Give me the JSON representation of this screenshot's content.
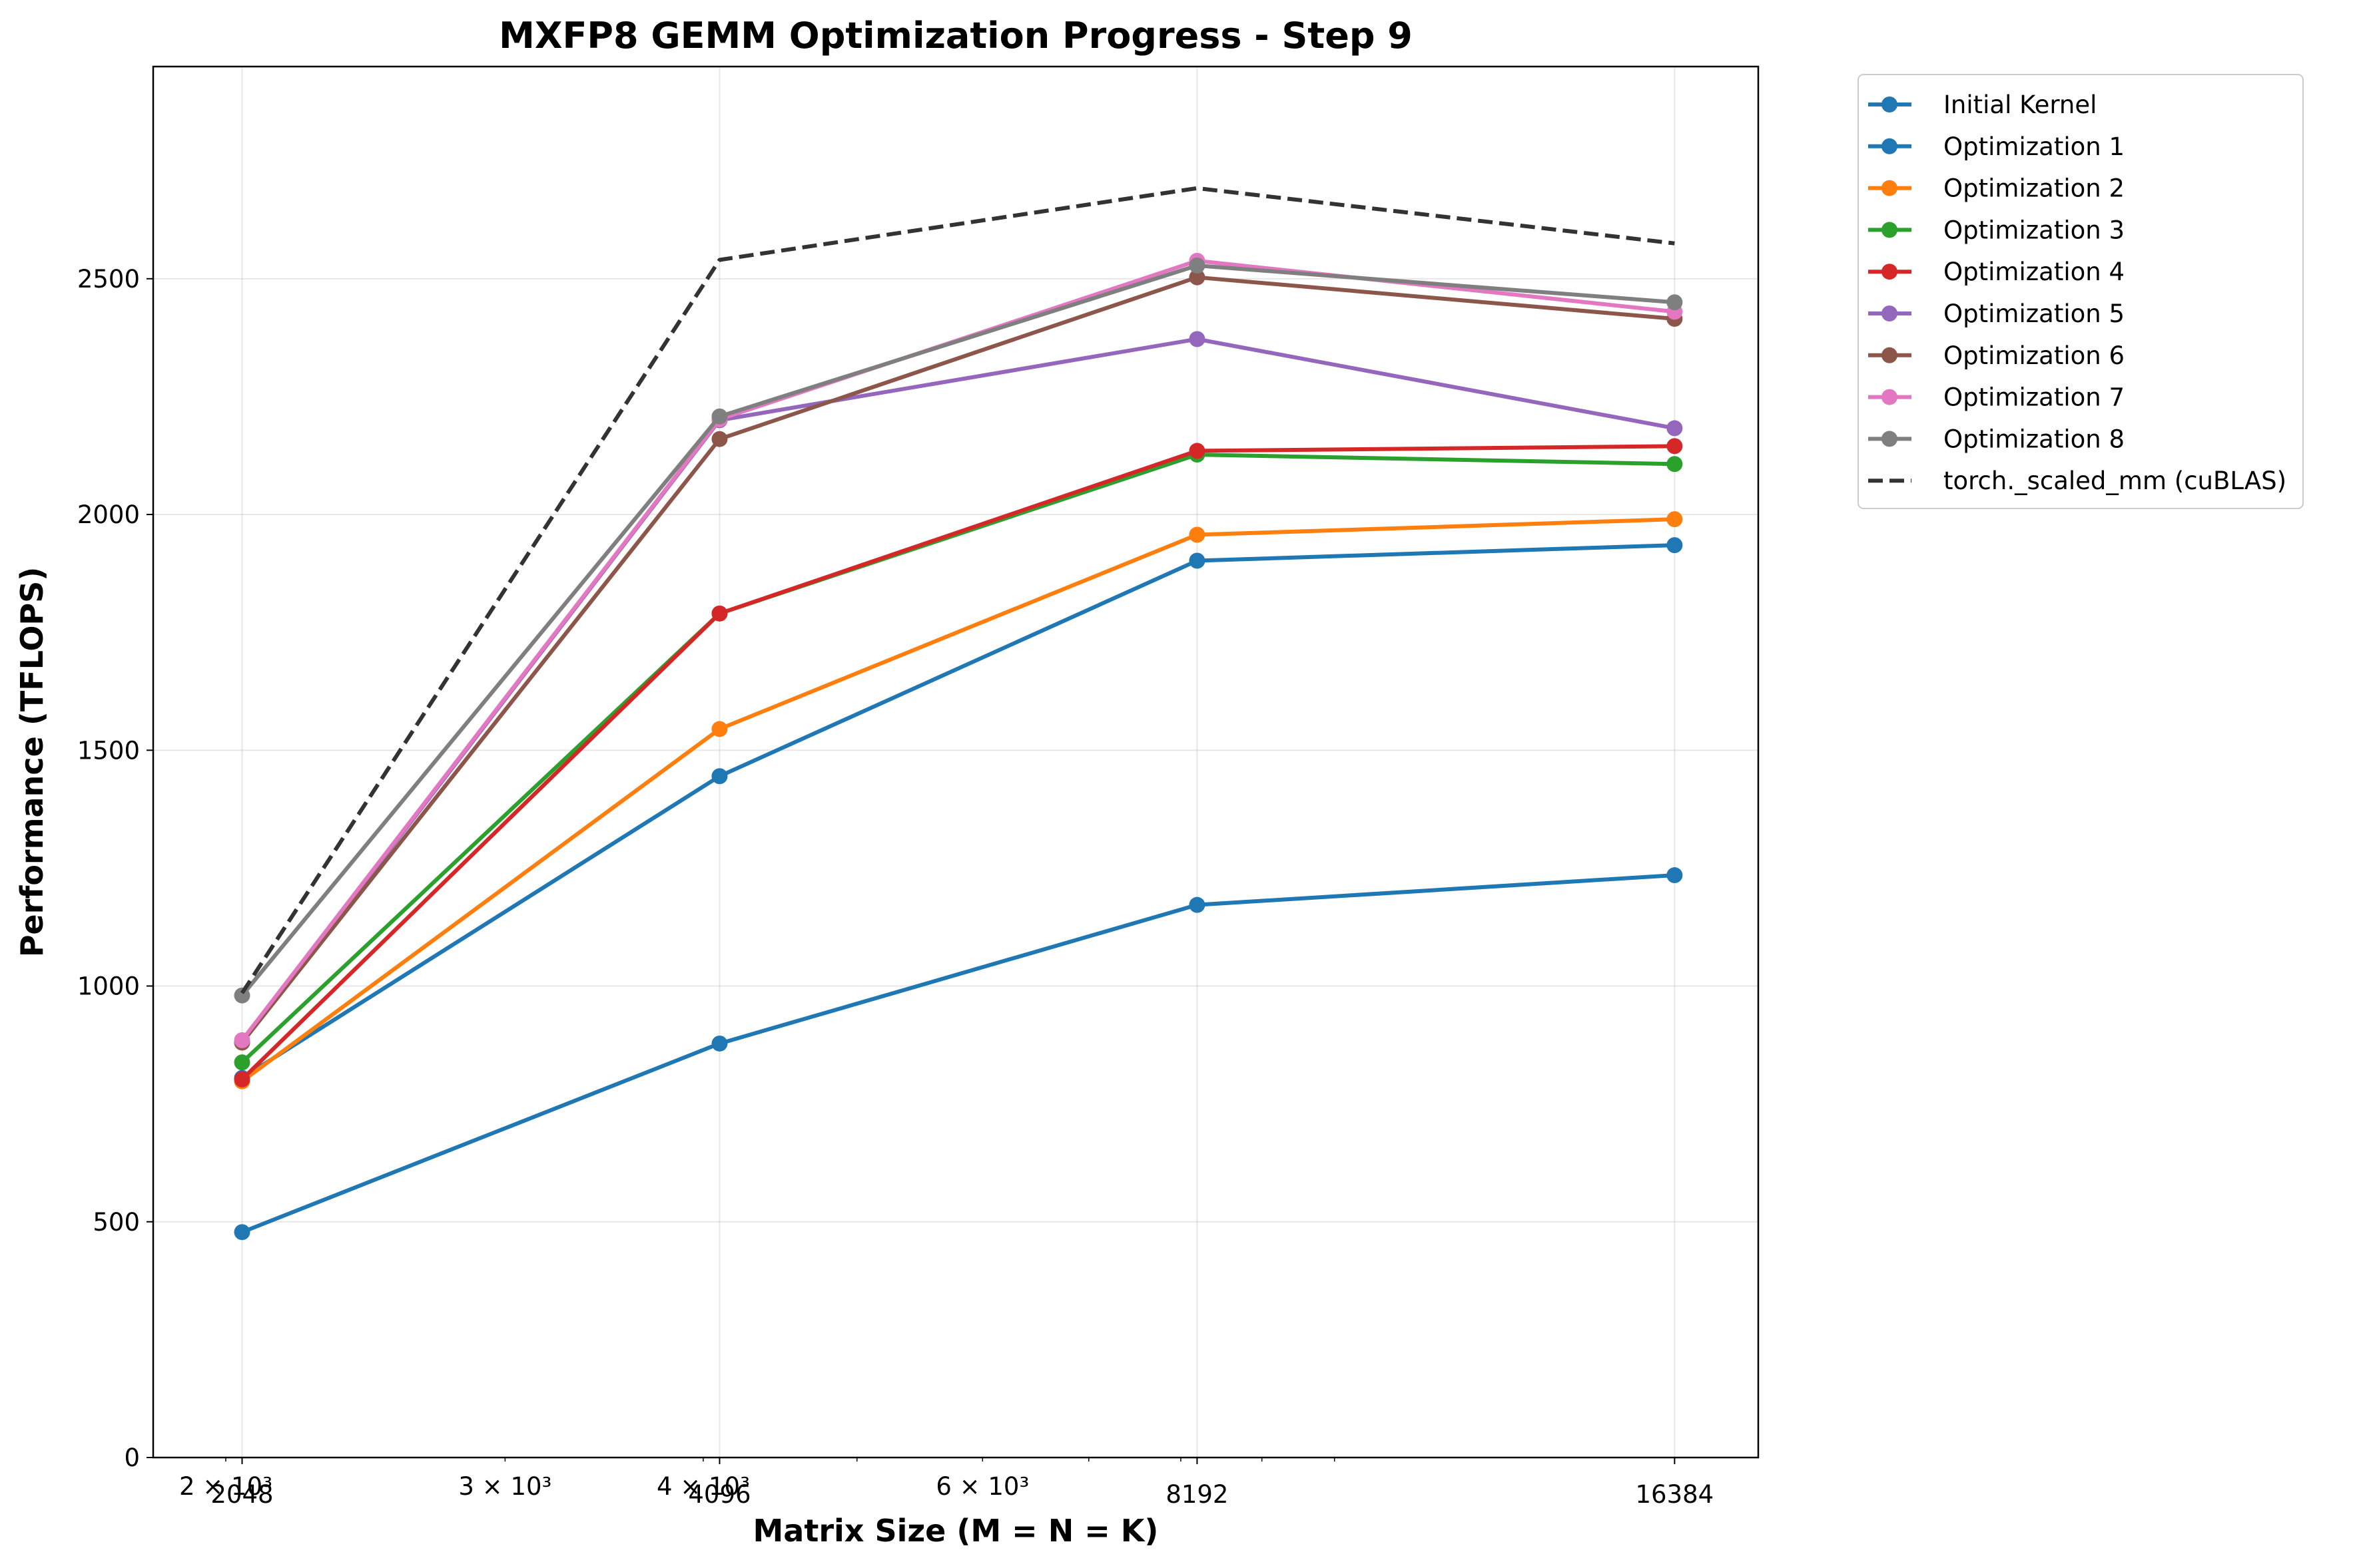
{
  "chart_data": {
    "type": "line",
    "title": "MXFP8 GEMM Optimization Progress - Step 9",
    "xlabel": "Matrix Size (M = N = K)",
    "ylabel": "Performance (TFLOPS)",
    "x_scale": "log",
    "x": [
      2048,
      4096,
      8192,
      16384
    ],
    "xlim": [
      1800,
      18500
    ],
    "ylim": [
      0,
      2950
    ],
    "grid": true,
    "legend_placement": "outside-upper-right",
    "x_tick_labels": [
      {
        "value": 2000,
        "label": "2 × 10³"
      },
      {
        "value": 2048,
        "label": "2048"
      },
      {
        "value": 3000,
        "label": "3 × 10³"
      },
      {
        "value": 4000,
        "label": "4 × 10³"
      },
      {
        "value": 4096,
        "label": "4096"
      },
      {
        "value": 6000,
        "label": "6 × 10³"
      },
      {
        "value": 8192,
        "label": "8192"
      },
      {
        "value": 16384,
        "label": "16384"
      }
    ],
    "y_ticks": [
      0,
      500,
      1000,
      1500,
      2000,
      2500
    ],
    "series": [
      {
        "name": "Initial Kernel",
        "color": "#1f77b4",
        "style": "solid",
        "markers": true,
        "values": [
          478,
          878,
          1172,
          1235
        ]
      },
      {
        "name": "Optimization 1",
        "color": "#1f77b4",
        "style": "solid",
        "markers": true,
        "values": [
          805,
          1445,
          1902,
          1935
        ]
      },
      {
        "name": "Optimization 2",
        "color": "#ff7f0e",
        "style": "solid",
        "markers": true,
        "values": [
          798,
          1545,
          1957,
          1990
        ]
      },
      {
        "name": "Optimization 3",
        "color": "#2ca02c",
        "style": "solid",
        "markers": true,
        "values": [
          838,
          1790,
          2127,
          2107
        ]
      },
      {
        "name": "Optimization 4",
        "color": "#d62728",
        "style": "solid",
        "markers": true,
        "values": [
          802,
          1790,
          2135,
          2145
        ]
      },
      {
        "name": "Optimization 5",
        "color": "#9467bd",
        "style": "solid",
        "markers": true,
        "values": [
          882,
          2200,
          2372,
          2183
        ]
      },
      {
        "name": "Optimization 6",
        "color": "#8c564b",
        "style": "solid",
        "markers": true,
        "values": [
          880,
          2160,
          2503,
          2415
        ]
      },
      {
        "name": "Optimization 7",
        "color": "#e377c2",
        "style": "solid",
        "markers": true,
        "values": [
          885,
          2202,
          2538,
          2430
        ]
      },
      {
        "name": "Optimization 8",
        "color": "#7f7f7f",
        "style": "solid",
        "markers": true,
        "values": [
          980,
          2208,
          2528,
          2450
        ]
      },
      {
        "name": "torch._scaled_mm (cuBLAS)",
        "color": "#333333",
        "style": "dashed",
        "markers": false,
        "values": [
          985,
          2540,
          2692,
          2575
        ]
      }
    ]
  }
}
